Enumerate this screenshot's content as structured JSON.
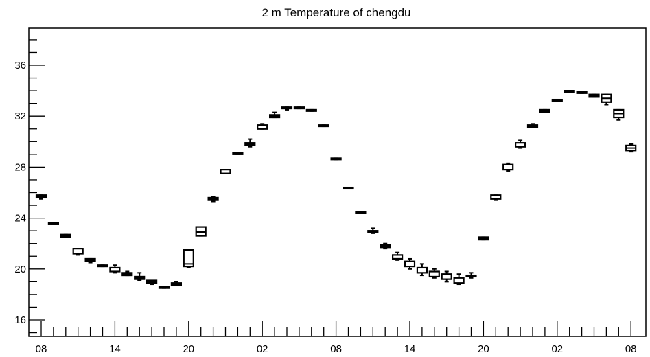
{
  "chart_data": {
    "type": "boxplot",
    "title": "2 m Temperature of chengdu",
    "xlabel": "",
    "ylabel": "",
    "ylim": [
      14.8,
      38.8
    ],
    "yticks": [
      16,
      20,
      24,
      28,
      32,
      36
    ],
    "y_minor_step": 1,
    "x_range": [
      0,
      48.6
    ],
    "x_tick_labels": [
      "08",
      "14",
      "20",
      "02",
      "08",
      "14",
      "20",
      "02",
      "08"
    ],
    "x_tick_step_major": 6,
    "x_minor_step": 1,
    "grid": false,
    "boxes": [
      {
        "t": 0,
        "low": 25.5,
        "q1": 25.6,
        "q3": 25.8,
        "high": 25.8
      },
      {
        "t": 1,
        "low": 23.5,
        "q1": 23.5,
        "q3": 23.6,
        "high": 23.6
      },
      {
        "t": 2,
        "low": 22.5,
        "q1": 22.5,
        "q3": 22.7,
        "high": 22.7
      },
      {
        "t": 3,
        "low": 21.1,
        "q1": 21.2,
        "q3": 21.6,
        "high": 21.6
      },
      {
        "t": 4,
        "low": 20.5,
        "q1": 20.6,
        "q3": 20.8,
        "high": 20.8
      },
      {
        "t": 5,
        "low": 20.2,
        "q1": 20.2,
        "q3": 20.3,
        "high": 20.3
      },
      {
        "t": 6,
        "low": 19.7,
        "q1": 19.8,
        "q3": 20.1,
        "high": 20.3
      },
      {
        "t": 7,
        "low": 19.5,
        "q1": 19.5,
        "q3": 19.7,
        "high": 19.8
      },
      {
        "t": 8,
        "low": 19.1,
        "q1": 19.2,
        "q3": 19.4,
        "high": 19.7
      },
      {
        "t": 9,
        "low": 18.8,
        "q1": 18.9,
        "q3": 19.1,
        "high": 19.1
      },
      {
        "t": 10,
        "low": 18.5,
        "q1": 18.5,
        "q3": 18.6,
        "high": 18.6
      },
      {
        "t": 11,
        "low": 18.7,
        "q1": 18.7,
        "q3": 18.9,
        "high": 19.0
      },
      {
        "t": 12,
        "low": 20.1,
        "q1": 20.2,
        "q3": 21.5,
        "high": 21.5,
        "median": 20.4
      },
      {
        "t": 13,
        "low": 22.6,
        "q1": 22.6,
        "q3": 23.3,
        "high": 23.3,
        "median": 22.9
      },
      {
        "t": 14,
        "low": 25.3,
        "q1": 25.4,
        "q3": 25.6,
        "high": 25.7
      },
      {
        "t": 15,
        "low": 27.5,
        "q1": 27.5,
        "q3": 27.8,
        "high": 27.8
      },
      {
        "t": 16,
        "low": 29.0,
        "q1": 29.0,
        "q3": 29.1,
        "high": 29.1
      },
      {
        "t": 17,
        "low": 29.6,
        "q1": 29.7,
        "q3": 29.9,
        "high": 30.2
      },
      {
        "t": 18,
        "low": 31.0,
        "q1": 31.0,
        "q3": 31.3,
        "high": 31.4
      },
      {
        "t": 19,
        "low": 31.9,
        "q1": 31.9,
        "q3": 32.1,
        "high": 32.3
      },
      {
        "t": 20,
        "low": 32.5,
        "q1": 32.6,
        "q3": 32.7,
        "high": 32.7
      },
      {
        "t": 21,
        "low": 32.6,
        "q1": 32.6,
        "q3": 32.7,
        "high": 32.7
      },
      {
        "t": 22,
        "low": 32.4,
        "q1": 32.4,
        "q3": 32.5,
        "high": 32.5
      },
      {
        "t": 23,
        "low": 31.2,
        "q1": 31.2,
        "q3": 31.3,
        "high": 31.3
      },
      {
        "t": 24,
        "low": 28.6,
        "q1": 28.6,
        "q3": 28.7,
        "high": 28.7
      },
      {
        "t": 25,
        "low": 26.3,
        "q1": 26.3,
        "q3": 26.4,
        "high": 26.4
      },
      {
        "t": 26,
        "low": 24.4,
        "q1": 24.4,
        "q3": 24.5,
        "high": 24.5
      },
      {
        "t": 27,
        "low": 22.8,
        "q1": 22.9,
        "q3": 23.0,
        "high": 23.2
      },
      {
        "t": 28,
        "low": 21.6,
        "q1": 21.7,
        "q3": 21.9,
        "high": 22.0
      },
      {
        "t": 29,
        "low": 20.7,
        "q1": 20.8,
        "q3": 21.1,
        "high": 21.3
      },
      {
        "t": 30,
        "low": 20.0,
        "q1": 20.2,
        "q3": 20.6,
        "high": 20.8
      },
      {
        "t": 31,
        "low": 19.5,
        "q1": 19.7,
        "q3": 20.1,
        "high": 20.4
      },
      {
        "t": 32,
        "low": 19.3,
        "q1": 19.4,
        "q3": 19.8,
        "high": 20.0
      },
      {
        "t": 33,
        "low": 19.0,
        "q1": 19.2,
        "q3": 19.6,
        "high": 19.8
      },
      {
        "t": 34,
        "low": 18.8,
        "q1": 18.9,
        "q3": 19.3,
        "high": 19.6
      },
      {
        "t": 35,
        "low": 19.3,
        "q1": 19.4,
        "q3": 19.5,
        "high": 19.7
      },
      {
        "t": 36,
        "low": 22.3,
        "q1": 22.3,
        "q3": 22.5,
        "high": 22.5
      },
      {
        "t": 37,
        "low": 25.4,
        "q1": 25.5,
        "q3": 25.8,
        "high": 25.8
      },
      {
        "t": 38,
        "low": 27.7,
        "q1": 27.8,
        "q3": 28.2,
        "high": 28.3
      },
      {
        "t": 39,
        "low": 29.5,
        "q1": 29.6,
        "q3": 29.9,
        "high": 30.1
      },
      {
        "t": 40,
        "low": 31.1,
        "q1": 31.1,
        "q3": 31.3,
        "high": 31.4
      },
      {
        "t": 41,
        "low": 32.3,
        "q1": 32.3,
        "q3": 32.5,
        "high": 32.5
      },
      {
        "t": 42,
        "low": 33.2,
        "q1": 33.2,
        "q3": 33.3,
        "high": 33.3
      },
      {
        "t": 43,
        "low": 33.9,
        "q1": 33.9,
        "q3": 34.0,
        "high": 34.0
      },
      {
        "t": 44,
        "low": 33.8,
        "q1": 33.8,
        "q3": 33.9,
        "high": 33.9
      },
      {
        "t": 45,
        "low": 33.5,
        "q1": 33.5,
        "q3": 33.7,
        "high": 33.7
      },
      {
        "t": 46,
        "low": 32.9,
        "q1": 33.1,
        "q3": 33.7,
        "high": 33.7,
        "median": 33.4
      },
      {
        "t": 47,
        "low": 31.7,
        "q1": 31.9,
        "q3": 32.5,
        "high": 32.5,
        "median": 32.2
      },
      {
        "t": 48,
        "low": 29.2,
        "q1": 29.3,
        "q3": 29.7,
        "high": 29.8,
        "median": 29.5
      }
    ]
  }
}
